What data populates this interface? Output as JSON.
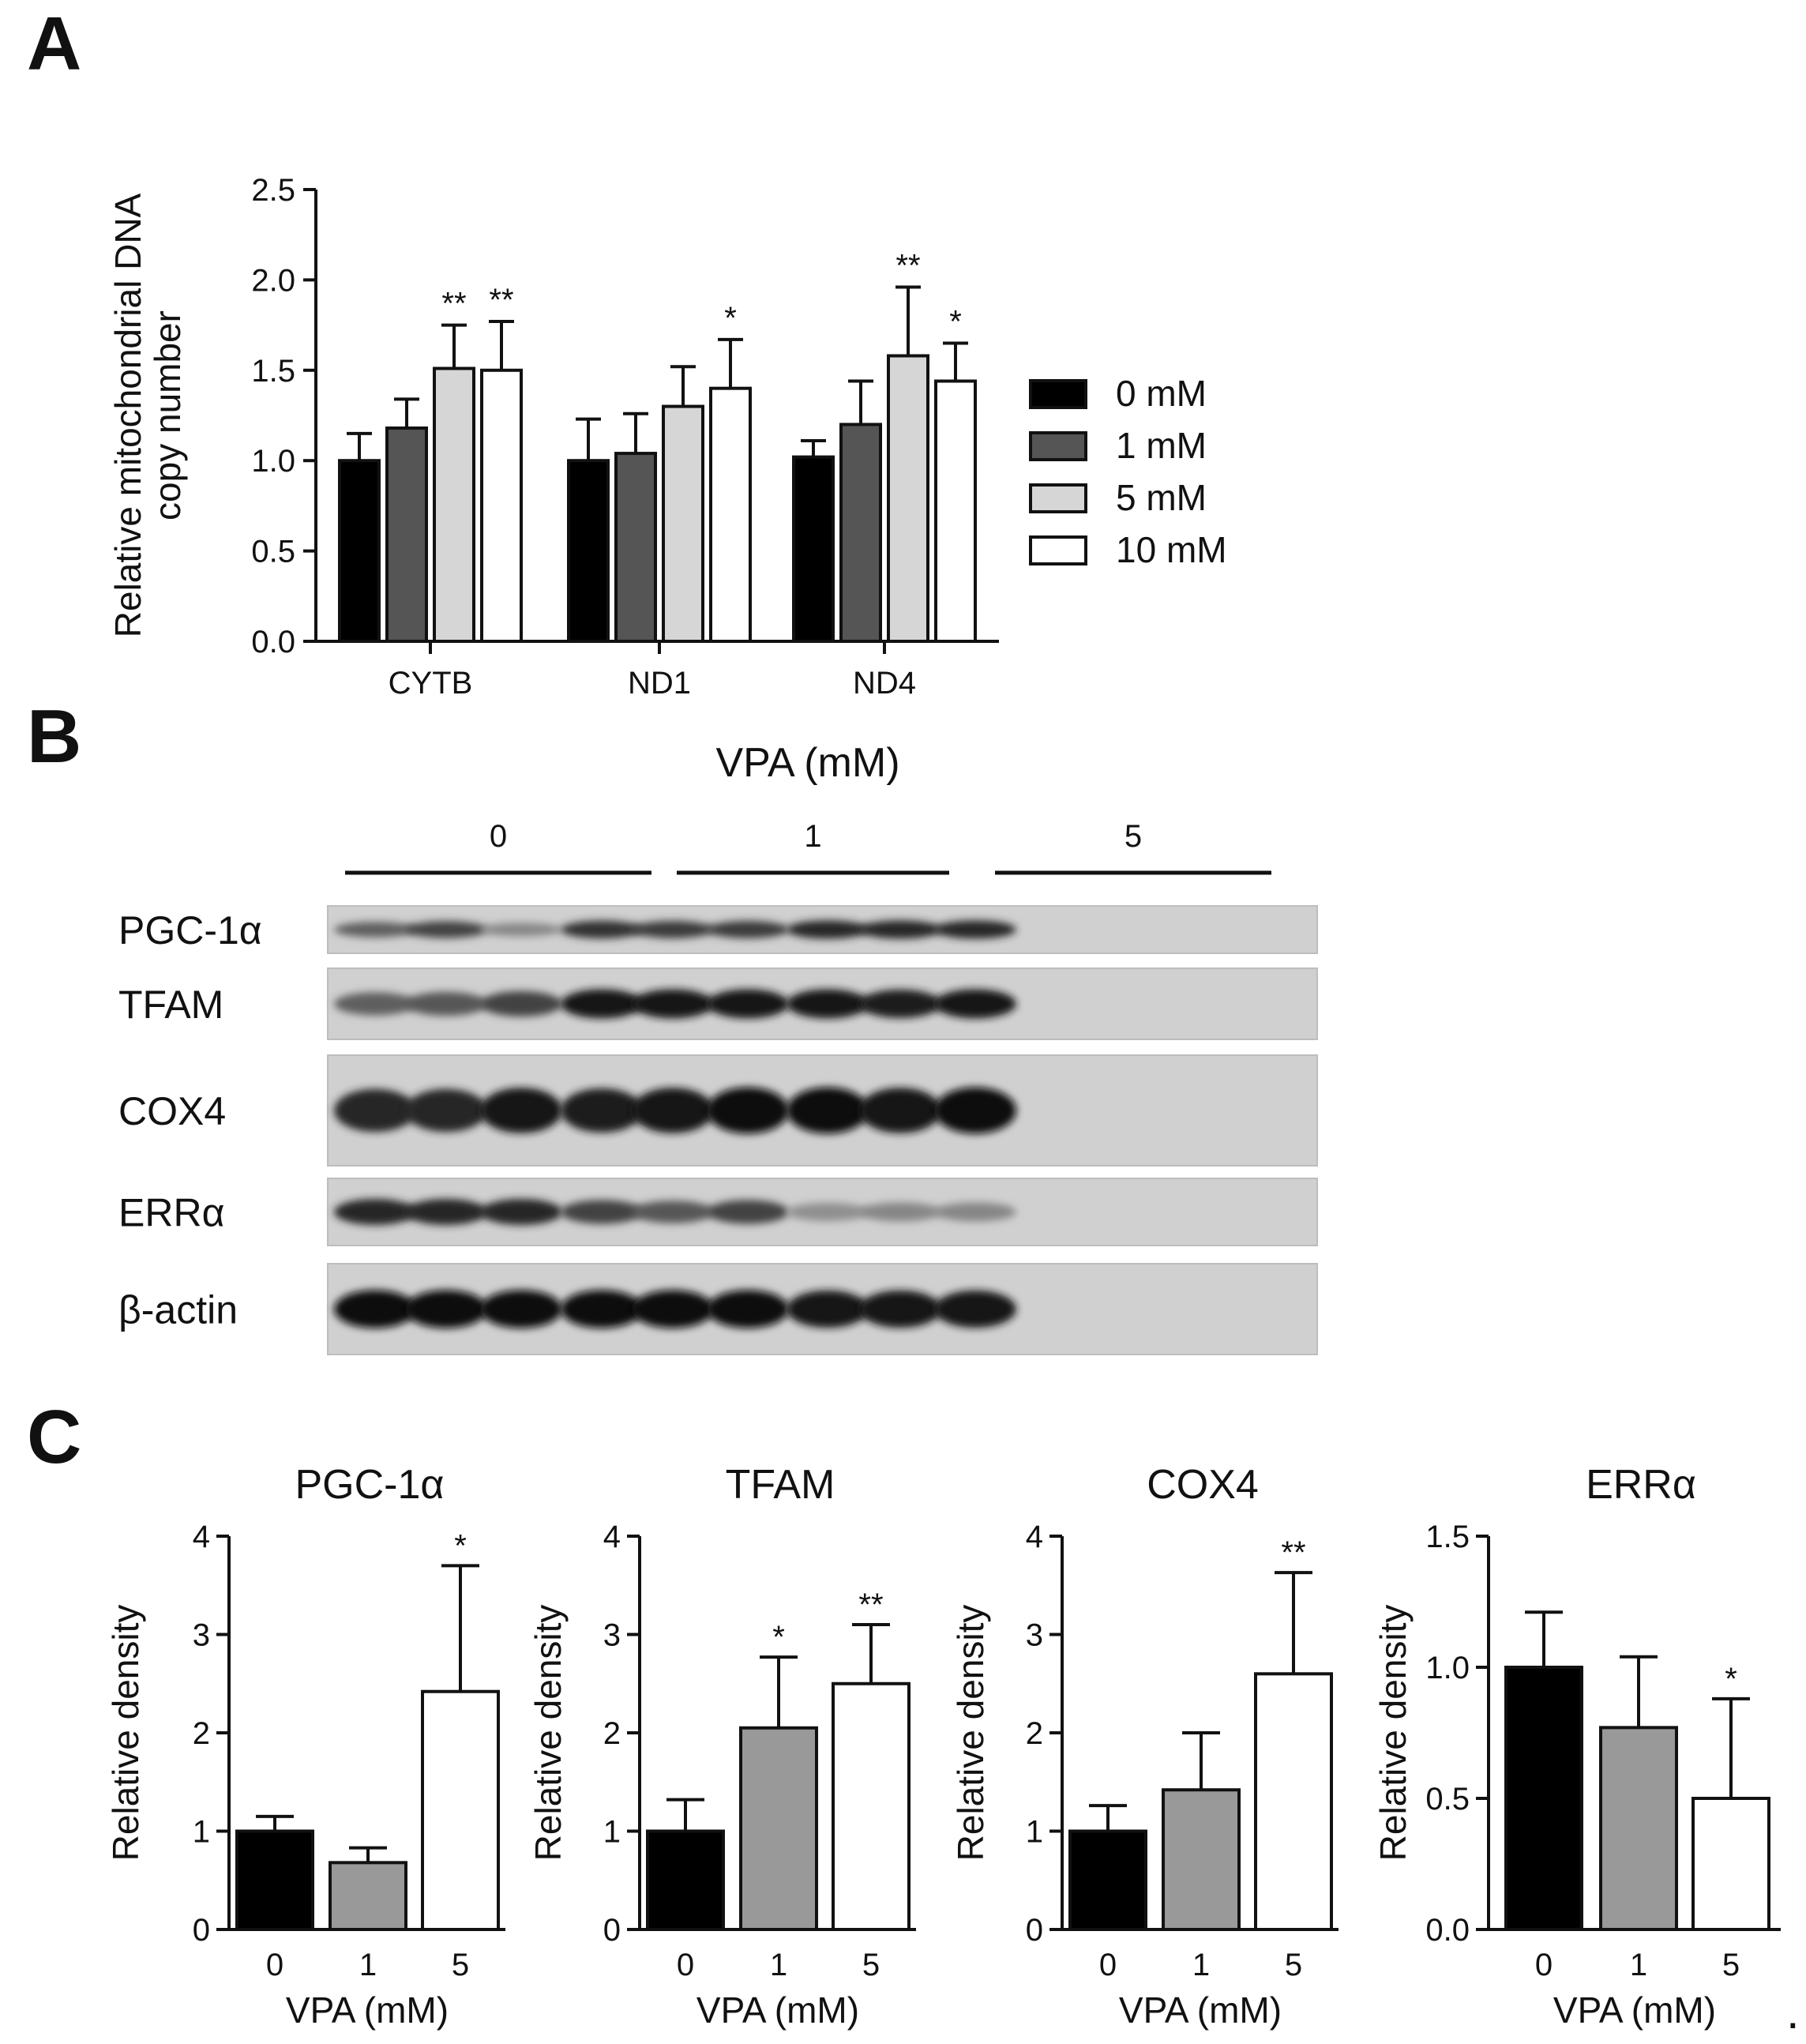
{
  "panels": {
    "A": {
      "letter": "A",
      "chart_data": {
        "type": "bar",
        "categories": [
          "CYTB",
          "ND1",
          "ND4"
        ],
        "ylabel": "Relative mitochondrial DNA copy number",
        "ylabel_lines": [
          "Relative mitochondrial DNA",
          "copy number"
        ],
        "xlabel": "",
        "ylim": [
          0,
          2.5
        ],
        "yticks": [
          "0.0",
          "0.5",
          "1.0",
          "1.5",
          "2.0",
          "2.5"
        ],
        "legend_position": "right",
        "series": [
          {
            "name": "0 mM",
            "color": "#000000",
            "values": [
              1.0,
              1.0,
              1.02
            ],
            "errors": [
              0.15,
              0.23,
              0.09
            ],
            "sig": [
              "",
              "",
              ""
            ]
          },
          {
            "name": "1 mM",
            "color": "#555555",
            "values": [
              1.18,
              1.04,
              1.2
            ],
            "errors": [
              0.16,
              0.22,
              0.24
            ],
            "sig": [
              "",
              "",
              ""
            ]
          },
          {
            "name": "5 mM",
            "color": "#d6d6d6",
            "values": [
              1.51,
              1.3,
              1.58
            ],
            "errors": [
              0.24,
              0.22,
              0.38
            ],
            "sig": [
              "**",
              "",
              "**"
            ]
          },
          {
            "name": "10 mM",
            "color": "#ffffff",
            "values": [
              1.5,
              1.4,
              1.44
            ],
            "errors": [
              0.27,
              0.27,
              0.21
            ],
            "sig": [
              "**",
              "*",
              "*"
            ]
          }
        ]
      }
    },
    "B": {
      "letter": "B",
      "header": "VPA (mM)",
      "groups": [
        "0",
        "1",
        "5"
      ],
      "rows": [
        {
          "label": "PGC-1α",
          "intensity": [
            0.55,
            0.7,
            0.35,
            0.8,
            0.75,
            0.75,
            0.85,
            0.85,
            0.85
          ]
        },
        {
          "label": "TFAM",
          "intensity": [
            0.55,
            0.6,
            0.7,
            0.95,
            0.95,
            0.95,
            0.95,
            0.9,
            0.95
          ]
        },
        {
          "label": "COX4",
          "intensity": [
            0.85,
            0.85,
            0.95,
            0.9,
            0.95,
            1.0,
            1.0,
            0.95,
            1.0
          ]
        },
        {
          "label": "ERRα",
          "intensity": [
            0.85,
            0.85,
            0.85,
            0.7,
            0.6,
            0.7,
            0.3,
            0.35,
            0.35
          ]
        },
        {
          "label": "β-actin",
          "intensity": [
            1.0,
            1.0,
            1.0,
            1.0,
            1.0,
            1.0,
            0.95,
            0.95,
            0.95
          ]
        }
      ]
    },
    "C": {
      "letter": "C",
      "chart_data": [
        {
          "type": "bar",
          "title": "PGC-1α",
          "categories": [
            "0",
            "1",
            "5"
          ],
          "xlabel": "VPA (mM)",
          "ylabel": "Relative density",
          "ylim": [
            0,
            4
          ],
          "yticks": [
            "0",
            "1",
            "2",
            "3",
            "4"
          ],
          "values": [
            1.0,
            0.68,
            2.42
          ],
          "errors": [
            0.15,
            0.15,
            1.28
          ],
          "sig": [
            "",
            "",
            "*"
          ],
          "colors": [
            "#000000",
            "#999999",
            "#ffffff"
          ]
        },
        {
          "type": "bar",
          "title": "TFAM",
          "categories": [
            "0",
            "1",
            "5"
          ],
          "xlabel": "VPA (mM)",
          "ylabel": "Relative density",
          "ylim": [
            0,
            4
          ],
          "yticks": [
            "0",
            "1",
            "2",
            "3",
            "4"
          ],
          "values": [
            1.0,
            2.05,
            2.5
          ],
          "errors": [
            0.32,
            0.72,
            0.6
          ],
          "sig": [
            "",
            "*",
            "**"
          ],
          "colors": [
            "#000000",
            "#999999",
            "#ffffff"
          ]
        },
        {
          "type": "bar",
          "title": "COX4",
          "categories": [
            "0",
            "1",
            "5"
          ],
          "xlabel": "VPA (mM)",
          "ylabel": "Relative density",
          "ylim": [
            0,
            4
          ],
          "yticks": [
            "0",
            "1",
            "2",
            "3",
            "4"
          ],
          "values": [
            1.0,
            1.42,
            2.6
          ],
          "errors": [
            0.26,
            0.58,
            1.03
          ],
          "sig": [
            "",
            "",
            "**"
          ],
          "colors": [
            "#000000",
            "#999999",
            "#ffffff"
          ]
        },
        {
          "type": "bar",
          "title": "ERRα",
          "categories": [
            "0",
            "1",
            "5"
          ],
          "xlabel": "VPA (mM)",
          "ylabel": "Relative density",
          "ylim": [
            0,
            1.5
          ],
          "yticks": [
            "0.0",
            "0.5",
            "1.0",
            "1.5"
          ],
          "values": [
            1.0,
            0.77,
            0.5
          ],
          "errors": [
            0.21,
            0.27,
            0.38
          ],
          "sig": [
            "",
            "",
            "*"
          ],
          "colors": [
            "#000000",
            "#999999",
            "#ffffff"
          ]
        }
      ]
    }
  }
}
